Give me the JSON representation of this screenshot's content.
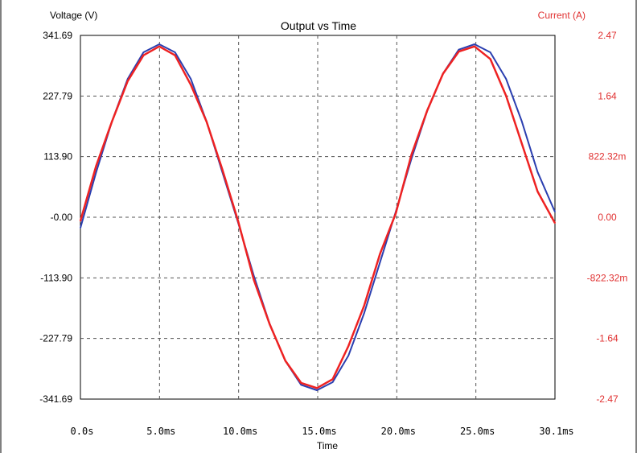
{
  "chart_data": {
    "type": "line",
    "title": "Output vs Time",
    "xlabel": "Time",
    "ylabel_left": "Voltage (V)",
    "ylabel_right": "Current (A)",
    "x_tick_labels": [
      "0.0s",
      "5.0ms",
      "10.0ms",
      "15.0ms",
      "20.0ms",
      "25.0ms",
      "30.1ms"
    ],
    "y_left_tick_labels": [
      "341.69",
      "227.79",
      "113.90",
      "-0.00",
      "-113.90",
      "-227.79",
      "-341.69"
    ],
    "y_right_tick_labels": [
      "2.47",
      "1.64",
      "822.32m",
      "0.00",
      "-822.32m",
      "-1.64",
      "-2.47"
    ],
    "xlim": [
      0,
      30.1
    ],
    "ylim_left": [
      -341.69,
      341.69
    ],
    "ylim_right": [
      -2.47,
      2.47
    ],
    "x_unit": "ms",
    "grid": true,
    "colors": {
      "voltage": "#2b3fb0",
      "current": "#ee2222",
      "right_axis_text": "#e03030",
      "grid": "#555555"
    },
    "series": [
      {
        "name": "Voltage (V)",
        "axis": "left",
        "x": [
          0,
          1,
          2,
          3,
          4,
          5,
          6,
          7,
          8,
          9,
          10,
          11,
          12,
          13,
          14,
          15,
          16,
          17,
          18,
          19,
          20,
          21,
          22,
          23,
          24,
          25,
          26,
          27,
          28,
          29,
          30.1
        ],
        "y": [
          -20,
          85,
          180,
          260,
          310,
          325,
          310,
          260,
          180,
          85,
          -10,
          -110,
          -200,
          -270,
          -315,
          -325,
          -310,
          -260,
          -180,
          -85,
          10,
          110,
          200,
          270,
          315,
          325,
          310,
          260,
          180,
          85,
          10
        ]
      },
      {
        "name": "Current (A)",
        "axis": "right",
        "x": [
          0,
          1,
          2,
          3,
          4,
          5,
          6,
          7,
          8,
          9,
          10,
          11,
          12,
          13,
          14,
          15,
          16,
          17,
          18,
          19,
          20,
          21,
          22,
          23,
          24,
          25,
          26,
          27,
          28,
          29,
          30.1
        ],
        "y": [
          -0.05,
          0.7,
          1.3,
          1.85,
          2.2,
          2.32,
          2.2,
          1.8,
          1.3,
          0.65,
          -0.05,
          -0.85,
          -1.45,
          -1.95,
          -2.25,
          -2.32,
          -2.2,
          -1.75,
          -1.2,
          -0.5,
          0.05,
          0.85,
          1.45,
          1.95,
          2.25,
          2.32,
          2.15,
          1.65,
          1.0,
          0.35,
          -0.08
        ]
      }
    ]
  }
}
